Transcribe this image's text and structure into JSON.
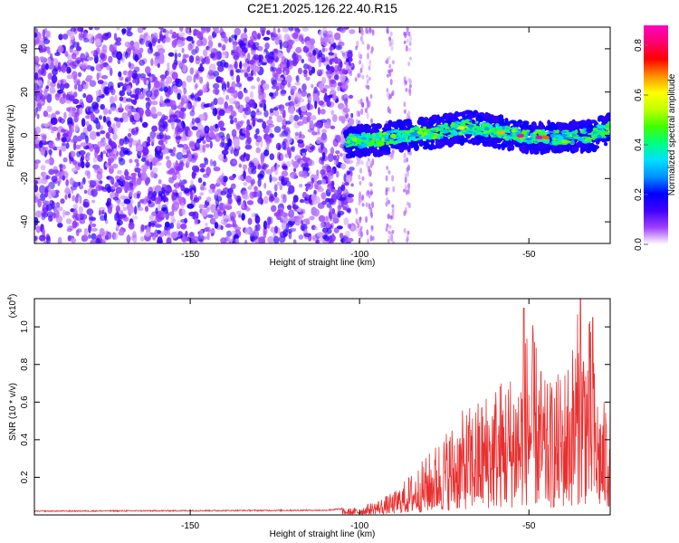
{
  "title": "C2E1.2025.126.22.40.R15",
  "chart_data": [
    {
      "type": "heatmap",
      "name": "spectrogram",
      "xlabel": "Height of straight line (km)",
      "ylabel": "Frequency (Hz)",
      "xlim": [
        -196,
        -26
      ],
      "ylim": [
        -50,
        50
      ],
      "xticks": [
        -150,
        -100,
        -50
      ],
      "yticks": [
        -40,
        -20,
        0,
        20,
        40
      ],
      "ridge": {
        "x": [
          -104,
          -95,
          -85,
          -75,
          -68,
          -60,
          -50,
          -40,
          -32,
          -26
        ],
        "y_center": [
          -3,
          -2,
          0,
          2,
          4,
          2,
          -1,
          -1,
          0,
          3
        ],
        "peak_amplitude": 0.88
      },
      "colorbar": {
        "label": "Normalized spectral amplitude",
        "ticks": [
          0.0,
          0.2,
          0.4,
          0.6,
          0.8
        ],
        "min": 0.0,
        "max": 0.88,
        "colors": [
          "#ffffff",
          "#a040ff",
          "#4000ff",
          "#0000ff",
          "#0090ff",
          "#00e0ff",
          "#00ff80",
          "#40ff00",
          "#c0ff00",
          "#ffff00",
          "#ff9000",
          "#ff0000",
          "#ff0070",
          "#ff00c0"
        ]
      }
    },
    {
      "type": "line",
      "name": "snr",
      "xlabel": "Height of straight line (km)",
      "ylabel": "SNR (10 * v/v)",
      "yscale_label": "(x10",
      "yscale_exp": "4",
      "xlim": [
        -196,
        -26
      ],
      "ylim": [
        0,
        1.15
      ],
      "xticks": [
        -150,
        -100,
        -50
      ],
      "yticks": [
        0.2,
        0.4,
        0.6,
        0.8,
        1.0
      ],
      "color": "#e83030",
      "envelope": {
        "x": [
          -196,
          -110,
          -100,
          -95,
          -90,
          -86,
          -80,
          -75,
          -70,
          -65,
          -60,
          -55,
          -52,
          -50,
          -45,
          -40,
          -37,
          -35,
          -32,
          -30,
          -28,
          -26
        ],
        "y": [
          0.02,
          0.025,
          0.04,
          0.08,
          0.12,
          0.2,
          0.32,
          0.45,
          0.55,
          0.62,
          0.72,
          0.78,
          0.85,
          1.1,
          0.7,
          0.78,
          0.95,
          1.15,
          1.05,
          0.7,
          0.6,
          0.7
        ]
      },
      "peaks": [
        {
          "x": -51.5,
          "y": 1.1
        },
        {
          "x": -34.8,
          "y": 1.16
        },
        {
          "x": -31.2,
          "y": 1.05
        }
      ]
    }
  ]
}
